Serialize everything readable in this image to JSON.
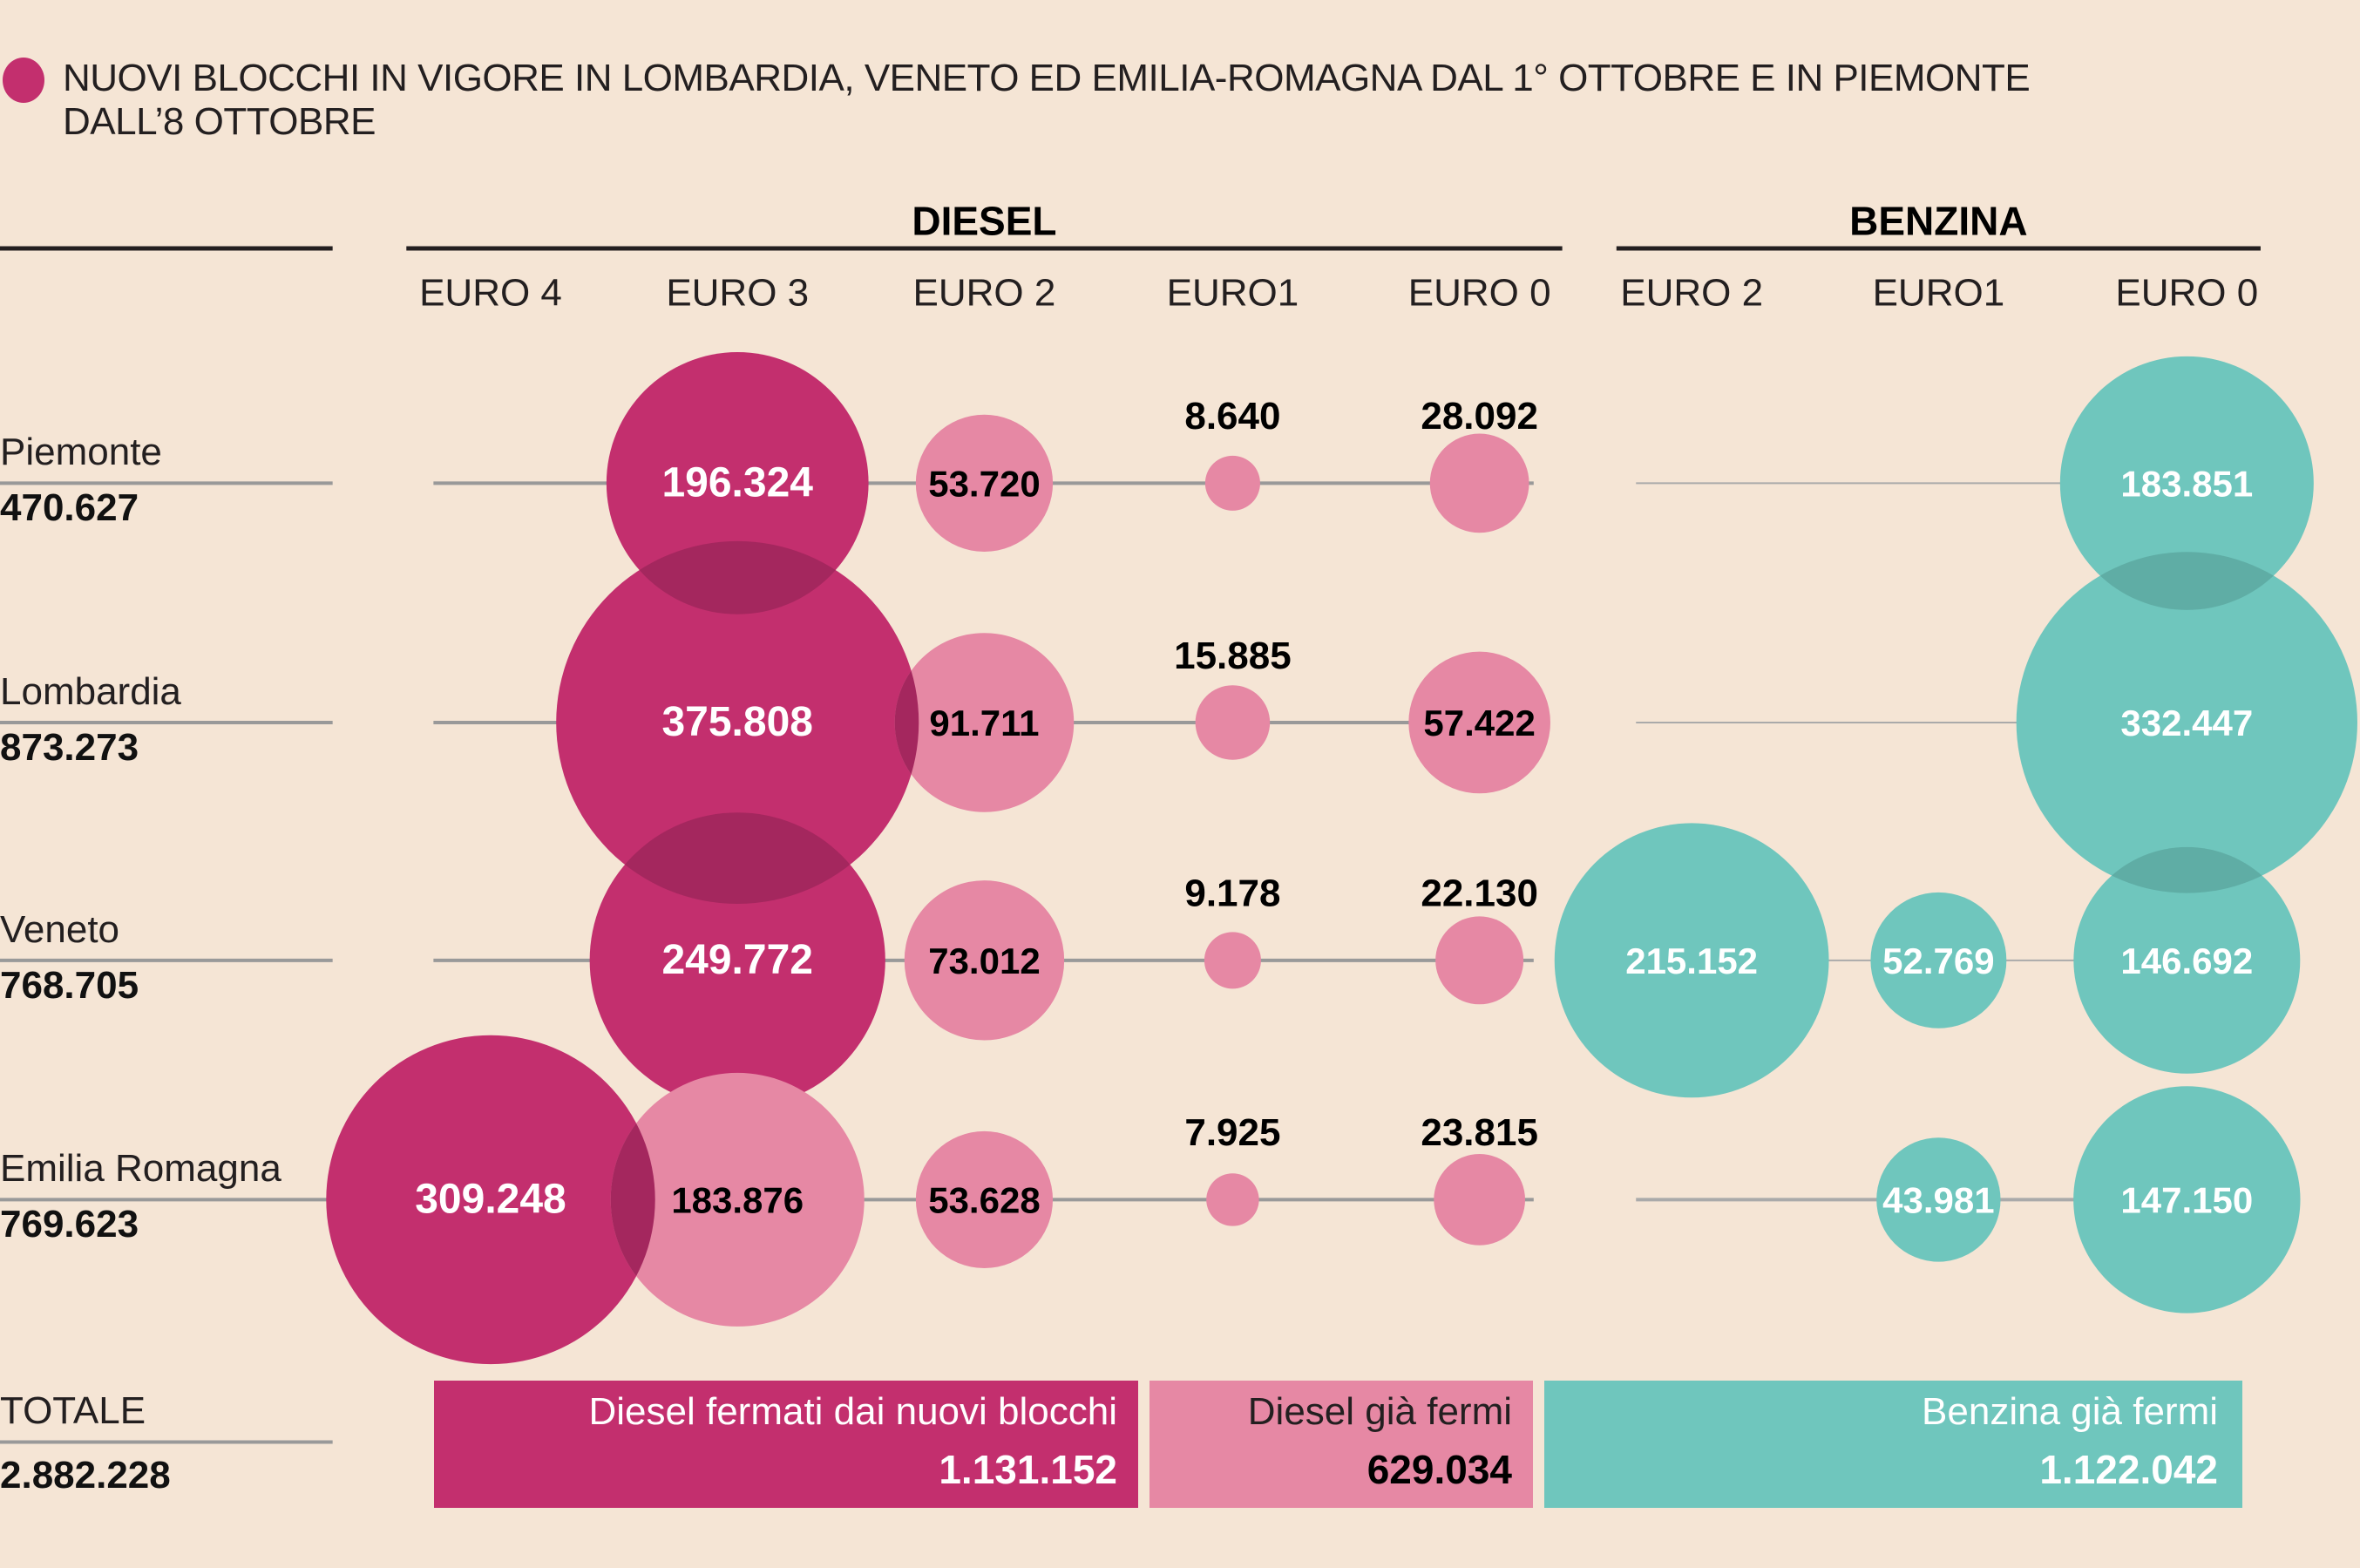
{
  "title": {
    "line1": "NUOVI BLOCCHI IN VIGORE IN LOMBARDIA, VENETO ED EMILIA-ROMAGNA DAL 1° OTTOBRE E IN PIEMONTE",
    "line2": "DALL’8 OTTOBRE",
    "legend_marker_color": "#c32f6e"
  },
  "colors": {
    "background": "#f5e5d5",
    "new_block": "#c32f6e",
    "diesel_already_stopped": "#e688a4",
    "petrol_already_stopped": "#6fc6bd",
    "overlap_diesel": "#a4275e",
    "overlap_petrol": "#5fada5",
    "line": "#999999"
  },
  "chart_data": {
    "type": "bubble",
    "title": "NUOVI BLOCCHI IN VIGORE IN LOMBARDIA, VENETO ED EMILIA-ROMAGNA DAL 1° OTTOBRE E IN PIEMONTE DALL’8 OTTOBRE",
    "groups": [
      {
        "name": "DIESEL",
        "columns": [
          "EURO 4",
          "EURO 3",
          "EURO 2",
          "EURO1",
          "EURO 0"
        ]
      },
      {
        "name": "BENZINA",
        "columns": [
          "EURO 2",
          "EURO1",
          "EURO 0"
        ]
      }
    ],
    "rows": [
      {
        "region": "Piemonte",
        "total": "470.627",
        "cells": [
          {
            "group": "DIESEL",
            "column": "EURO 4",
            "value": null,
            "label": null,
            "category": null
          },
          {
            "group": "DIESEL",
            "column": "EURO 3",
            "value": 196324,
            "label": "196.324",
            "category": "new_block"
          },
          {
            "group": "DIESEL",
            "column": "EURO 2",
            "value": 53720,
            "label": "53.720",
            "category": "diesel_already_stopped"
          },
          {
            "group": "DIESEL",
            "column": "EURO1",
            "value": 8640,
            "label": "8.640",
            "category": "diesel_already_stopped"
          },
          {
            "group": "DIESEL",
            "column": "EURO 0",
            "value": 28092,
            "label": "28.092",
            "category": "diesel_already_stopped"
          },
          {
            "group": "BENZINA",
            "column": "EURO 2",
            "value": null,
            "label": null,
            "category": null
          },
          {
            "group": "BENZINA",
            "column": "EURO1",
            "value": null,
            "label": null,
            "category": null
          },
          {
            "group": "BENZINA",
            "column": "EURO 0",
            "value": 183851,
            "label": "183.851",
            "category": "petrol_already_stopped"
          }
        ]
      },
      {
        "region": "Lombardia",
        "total": "873.273",
        "cells": [
          {
            "group": "DIESEL",
            "column": "EURO 4",
            "value": null,
            "label": null,
            "category": null
          },
          {
            "group": "DIESEL",
            "column": "EURO 3",
            "value": 375808,
            "label": "375.808",
            "category": "new_block"
          },
          {
            "group": "DIESEL",
            "column": "EURO 2",
            "value": 91711,
            "label": "91.711",
            "category": "diesel_already_stopped"
          },
          {
            "group": "DIESEL",
            "column": "EURO1",
            "value": 15885,
            "label": "15.885",
            "category": "diesel_already_stopped"
          },
          {
            "group": "DIESEL",
            "column": "EURO 0",
            "value": 57422,
            "label": "57.422",
            "category": "diesel_already_stopped"
          },
          {
            "group": "BENZINA",
            "column": "EURO 2",
            "value": null,
            "label": null,
            "category": null
          },
          {
            "group": "BENZINA",
            "column": "EURO1",
            "value": null,
            "label": null,
            "category": null
          },
          {
            "group": "BENZINA",
            "column": "EURO 0",
            "value": 332447,
            "label": "332.447",
            "category": "petrol_already_stopped"
          }
        ]
      },
      {
        "region": "Veneto",
        "total": "768.705",
        "cells": [
          {
            "group": "DIESEL",
            "column": "EURO 4",
            "value": null,
            "label": null,
            "category": null
          },
          {
            "group": "DIESEL",
            "column": "EURO 3",
            "value": 249772,
            "label": "249.772",
            "category": "new_block"
          },
          {
            "group": "DIESEL",
            "column": "EURO 2",
            "value": 73012,
            "label": "73.012",
            "category": "diesel_already_stopped"
          },
          {
            "group": "DIESEL",
            "column": "EURO1",
            "value": 9178,
            "label": "9.178",
            "category": "diesel_already_stopped"
          },
          {
            "group": "DIESEL",
            "column": "EURO 0",
            "value": 22130,
            "label": "22.130",
            "category": "diesel_already_stopped"
          },
          {
            "group": "BENZINA",
            "column": "EURO 2",
            "value": 215152,
            "label": "215.152",
            "category": "petrol_already_stopped"
          },
          {
            "group": "BENZINA",
            "column": "EURO1",
            "value": 52769,
            "label": "52.769",
            "category": "petrol_already_stopped"
          },
          {
            "group": "BENZINA",
            "column": "EURO 0",
            "value": 146692,
            "label": "146.692",
            "category": "petrol_already_stopped"
          }
        ]
      },
      {
        "region": "Emilia Romagna",
        "total": "769.623",
        "cells": [
          {
            "group": "DIESEL",
            "column": "EURO 4",
            "value": 309248,
            "label": "309.248",
            "category": "new_block"
          },
          {
            "group": "DIESEL",
            "column": "EURO 3",
            "value": 183876,
            "label": "183.876",
            "category": "diesel_already_stopped"
          },
          {
            "group": "DIESEL",
            "column": "EURO 2",
            "value": 53628,
            "label": "53.628",
            "category": "diesel_already_stopped"
          },
          {
            "group": "DIESEL",
            "column": "EURO1",
            "value": 7925,
            "label": "7.925",
            "category": "diesel_already_stopped"
          },
          {
            "group": "DIESEL",
            "column": "EURO 0",
            "value": 23815,
            "label": "23.815",
            "category": "diesel_already_stopped"
          },
          {
            "group": "BENZINA",
            "column": "EURO 2",
            "value": null,
            "label": null,
            "category": null
          },
          {
            "group": "BENZINA",
            "column": "EURO1",
            "value": 43981,
            "label": "43.981",
            "category": "petrol_already_stopped"
          },
          {
            "group": "BENZINA",
            "column": "EURO 0",
            "value": 147150,
            "label": "147.150",
            "category": "petrol_already_stopped"
          }
        ]
      }
    ],
    "totals": {
      "label": "TOTALE",
      "grand_total": "2.882.228",
      "boxes": [
        {
          "label": "Diesel fermati dai nuovi blocchi",
          "value": "1.131.152",
          "category": "new_block"
        },
        {
          "label": "Diesel già fermi",
          "value": "629.034",
          "category": "diesel_already_stopped"
        },
        {
          "label": "Benzina già fermi",
          "value": "1.122.042",
          "category": "petrol_already_stopped"
        }
      ]
    },
    "size_encoding": "bubble area proportional to value"
  }
}
